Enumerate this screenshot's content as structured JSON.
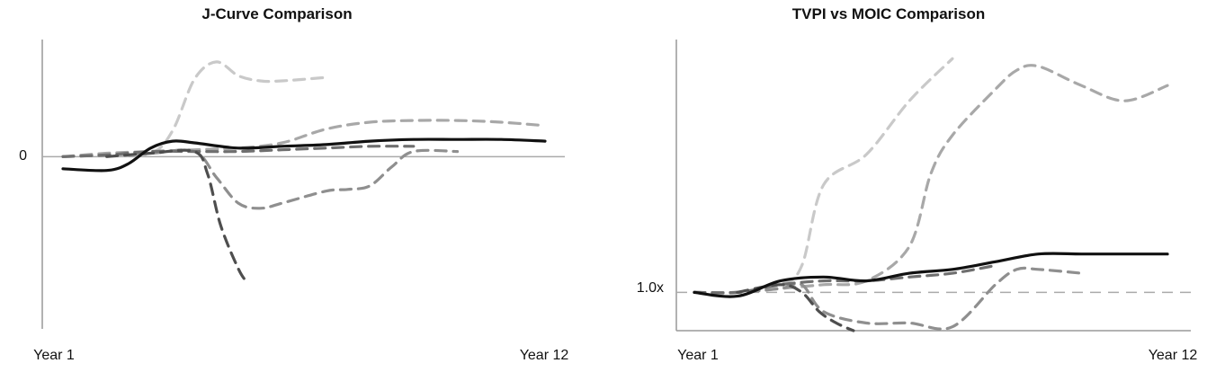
{
  "chart_data": [
    {
      "type": "line",
      "title": "J-Curve Comparison",
      "xlabel": "",
      "ylabel": "",
      "x_tick_labels": [
        "Year 1",
        "Year 12"
      ],
      "y_tick_labels": [
        "0"
      ],
      "xlim": [
        1,
        12
      ],
      "ylim": [
        -1.0,
        0.68
      ],
      "reference_line": {
        "y": 0,
        "style": "solid",
        "color": "#aaaaaa"
      },
      "grid": false,
      "series": [
        {
          "style": "dashed",
          "color": "#c9c9c9",
          "x": [
            1,
            2,
            3,
            3.5,
            4,
            4.5,
            5,
            5.5,
            6,
            7
          ],
          "y": [
            0.0,
            0.01,
            0.02,
            0.15,
            0.45,
            0.55,
            0.47,
            0.44,
            0.44,
            0.46
          ]
        },
        {
          "style": "dashed",
          "color": "#a8a8a8",
          "x": [
            1,
            2,
            3,
            4,
            5,
            6,
            7,
            8,
            9,
            10,
            11,
            12
          ],
          "y": [
            0.0,
            0.02,
            0.03,
            0.04,
            0.05,
            0.08,
            0.16,
            0.2,
            0.21,
            0.21,
            0.2,
            0.18
          ]
        },
        {
          "style": "dashed",
          "color": "#8f8f8f",
          "x": [
            1,
            2,
            3,
            4,
            4.5,
            5,
            5.5,
            6,
            7,
            7.5,
            8,
            8.5,
            9,
            10
          ],
          "y": [
            0.0,
            0.01,
            0.02,
            0.03,
            -0.12,
            -0.27,
            -0.3,
            -0.27,
            -0.2,
            -0.19,
            -0.17,
            -0.06,
            0.03,
            0.03
          ]
        },
        {
          "style": "dashed",
          "color": "#6f6f6f",
          "x": [
            1,
            2,
            3,
            4,
            5,
            6,
            7,
            8,
            9
          ],
          "y": [
            0.0,
            0.01,
            0.03,
            0.03,
            0.03,
            0.04,
            0.05,
            0.06,
            0.06
          ]
        },
        {
          "style": "dashed",
          "color": "#4e4e4e",
          "x": [
            2,
            3,
            4,
            4.3,
            4.6,
            5,
            5.2
          ],
          "y": [
            0.0,
            0.02,
            0.03,
            -0.1,
            -0.4,
            -0.65,
            -0.73
          ]
        },
        {
          "style": "solid",
          "color": "#111111",
          "x": [
            1,
            2,
            2.5,
            3,
            3.5,
            4,
            5,
            6,
            7,
            8,
            9,
            10,
            11,
            12
          ],
          "y": [
            -0.07,
            -0.08,
            -0.04,
            0.05,
            0.09,
            0.08,
            0.05,
            0.06,
            0.07,
            0.09,
            0.1,
            0.1,
            0.1,
            0.09
          ]
        }
      ]
    },
    {
      "type": "line",
      "title": "TVPI vs MOIC Comparison",
      "xlabel": "",
      "ylabel": "",
      "x_tick_labels": [
        "Year 1",
        "Year 12"
      ],
      "y_tick_labels": [
        "1.0x"
      ],
      "xlim": [
        1,
        12
      ],
      "ylim": [
        0.9,
        1.66
      ],
      "reference_line": {
        "y": 1.0,
        "style": "dashed",
        "color": "#aaaaaa"
      },
      "grid": false,
      "series": [
        {
          "style": "dashed",
          "color": "#c9c9c9",
          "x": [
            1,
            2,
            3,
            3.5,
            4,
            5,
            6,
            7
          ],
          "y": [
            1.0,
            1.0,
            1.02,
            1.07,
            1.28,
            1.36,
            1.5,
            1.61
          ]
        },
        {
          "style": "dashed",
          "color": "#a8a8a8",
          "x": [
            1,
            2,
            3,
            4,
            5,
            6,
            6.5,
            7,
            8,
            8.5,
            9,
            10,
            11,
            12
          ],
          "y": [
            1.0,
            1.0,
            1.01,
            1.02,
            1.03,
            1.12,
            1.31,
            1.41,
            1.53,
            1.58,
            1.59,
            1.54,
            1.5,
            1.54
          ]
        },
        {
          "style": "dashed",
          "color": "#8f8f8f",
          "x": [
            1,
            2,
            3,
            3.5,
            4,
            5,
            6,
            7,
            8,
            8.5,
            9,
            10
          ],
          "y": [
            1.0,
            1.0,
            1.01,
            1.02,
            0.95,
            0.92,
            0.92,
            0.91,
            1.02,
            1.06,
            1.06,
            1.05
          ]
        },
        {
          "style": "dashed",
          "color": "#6f6f6f",
          "x": [
            1,
            2,
            3,
            4,
            5,
            6,
            7,
            8
          ],
          "y": [
            1.0,
            1.0,
            1.02,
            1.03,
            1.03,
            1.04,
            1.05,
            1.07
          ]
        },
        {
          "style": "dashed",
          "color": "#4e4e4e",
          "x": [
            2,
            3,
            3.5,
            3.9,
            4.3,
            4.7
          ],
          "y": [
            1.0,
            1.02,
            1.0,
            0.95,
            0.92,
            0.9
          ]
        },
        {
          "style": "solid",
          "color": "#111111",
          "x": [
            1,
            2,
            3,
            4,
            5,
            6,
            7,
            8,
            9,
            10,
            11,
            12
          ],
          "y": [
            1.0,
            0.99,
            1.03,
            1.04,
            1.03,
            1.05,
            1.06,
            1.08,
            1.1,
            1.1,
            1.1,
            1.1
          ]
        }
      ]
    }
  ]
}
